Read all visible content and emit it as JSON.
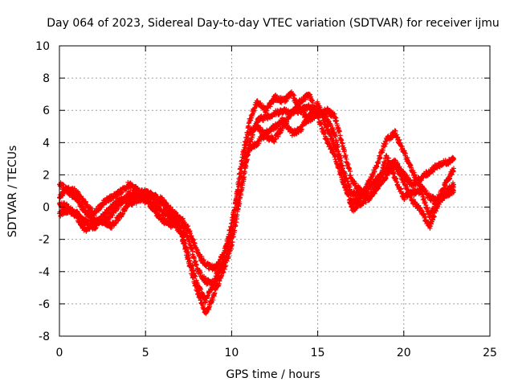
{
  "chart_data": {
    "type": "scatter",
    "title": "Day 064 of 2023, Sidereal Day-to-day VTEC variation (SDTVAR) for receiver ijmu",
    "xlabel": "GPS time / hours",
    "ylabel": "SDTVAR / TECUs",
    "xlim": [
      0,
      25
    ],
    "ylim": [
      -8,
      10
    ],
    "xticks": [
      0,
      5,
      10,
      15,
      20,
      25
    ],
    "yticks": [
      -8,
      -6,
      -4,
      -2,
      0,
      2,
      4,
      6,
      8,
      10
    ],
    "grid": true,
    "marker": "+",
    "series": [
      {
        "color": "#ff0000",
        "x": [
          0.0,
          0.5,
          1.0,
          1.5,
          2.0,
          2.5,
          3.0,
          3.5,
          4.0,
          4.5,
          5.0,
          5.5,
          6.0,
          6.5,
          7.0,
          7.5,
          8.0,
          8.5,
          9.0,
          9.5,
          10.0,
          10.5,
          11.0,
          11.5,
          12.0,
          12.5,
          13.0,
          13.5,
          14.0,
          14.5,
          15.0,
          15.5,
          16.0,
          16.5,
          17.0,
          17.5,
          18.0,
          18.5,
          19.0,
          19.5,
          20.0,
          20.5,
          21.0,
          21.5,
          22.0,
          22.5,
          22.9
        ],
        "y": [
          1.4,
          1.0,
          0.5,
          -0.3,
          -0.8,
          -1.0,
          -0.5,
          0.2,
          0.8,
          1.0,
          0.9,
          0.7,
          0.4,
          -0.2,
          -0.8,
          -2.0,
          -3.8,
          -4.6,
          -4.8,
          -3.6,
          -1.8,
          1.0,
          3.8,
          5.4,
          5.6,
          5.8,
          6.0,
          5.9,
          6.0,
          6.2,
          6.0,
          5.5,
          4.5,
          2.2,
          0.8,
          0.8,
          1.2,
          1.8,
          2.5,
          2.8,
          2.0,
          1.4,
          1.8,
          2.2,
          2.6,
          2.8,
          3.0
        ]
      },
      {
        "color": "#ff0000",
        "x": [
          0.0,
          0.5,
          1.0,
          1.5,
          2.0,
          2.5,
          3.0,
          3.5,
          4.0,
          4.5,
          5.0,
          5.5,
          6.0,
          6.5,
          7.0,
          7.5,
          8.0,
          8.5,
          9.0,
          9.5,
          10.0,
          10.5,
          11.0,
          11.5,
          12.0,
          12.5,
          13.0,
          13.5,
          14.0,
          14.5,
          15.0,
          15.5,
          16.0,
          16.5,
          17.0,
          17.5,
          18.0,
          18.5,
          19.0,
          19.5,
          20.0,
          20.5,
          21.0,
          21.5,
          22.0,
          22.5,
          22.9
        ],
        "y": [
          -0.4,
          -0.2,
          -0.4,
          -0.9,
          -1.3,
          -0.6,
          0.0,
          0.4,
          0.4,
          0.6,
          0.4,
          0.2,
          -0.3,
          -0.8,
          -1.5,
          -3.0,
          -4.8,
          -5.8,
          -4.6,
          -3.2,
          -1.0,
          1.8,
          4.6,
          5.0,
          4.4,
          4.2,
          5.0,
          5.8,
          6.6,
          7.0,
          5.6,
          4.2,
          3.2,
          1.4,
          0.3,
          0.6,
          1.6,
          2.8,
          4.2,
          4.6,
          3.4,
          2.2,
          1.2,
          0.6,
          0.4,
          0.8,
          1.0
        ]
      },
      {
        "color": "#ff0000",
        "x": [
          0.0,
          0.5,
          1.0,
          1.5,
          2.0,
          2.5,
          3.0,
          3.5,
          4.0,
          4.5,
          5.0,
          5.5,
          6.0,
          6.5,
          7.0,
          7.5,
          8.0,
          8.5,
          9.0,
          9.5,
          10.0,
          10.5,
          11.0,
          11.5,
          12.0,
          12.5,
          13.0,
          13.5,
          14.0,
          14.5,
          15.0,
          15.5,
          16.0,
          16.5,
          17.0,
          17.5,
          18.0,
          18.5,
          19.0,
          19.5,
          20.0,
          20.5,
          21.0,
          21.5,
          22.0,
          22.5,
          22.9
        ],
        "y": [
          0.6,
          1.2,
          0.9,
          0.2,
          -0.4,
          0.2,
          0.6,
          0.9,
          1.4,
          1.1,
          0.6,
          -0.2,
          -0.8,
          -1.1,
          -0.6,
          -1.4,
          -2.8,
          -3.6,
          -3.8,
          -3.0,
          -1.4,
          2.4,
          5.2,
          6.6,
          6.0,
          6.8,
          6.6,
          7.0,
          6.0,
          5.4,
          5.8,
          6.0,
          5.6,
          3.6,
          1.6,
          1.0,
          0.6,
          1.4,
          3.2,
          1.8,
          0.6,
          0.9,
          1.0,
          -0.6,
          0.6,
          1.6,
          2.4
        ]
      },
      {
        "color": "#ff0000",
        "x": [
          0.0,
          0.5,
          1.0,
          1.5,
          2.0,
          2.5,
          3.0,
          3.5,
          4.0,
          4.5,
          5.0,
          5.5,
          6.0,
          6.5,
          7.0,
          7.5,
          8.0,
          8.5,
          9.0,
          9.5,
          10.0,
          10.5,
          11.0,
          11.5,
          12.0,
          12.5,
          13.0,
          13.5,
          14.0,
          14.5,
          15.0,
          15.5,
          16.0,
          16.5,
          17.0,
          17.5,
          18.0,
          18.5,
          19.0,
          19.5,
          20.0,
          20.5,
          21.0,
          21.5,
          22.0,
          22.5,
          22.9
        ],
        "y": [
          0.2,
          0.0,
          -0.6,
          -1.4,
          -1.0,
          -0.8,
          -1.2,
          -0.6,
          0.2,
          0.4,
          0.8,
          0.6,
          0.2,
          -0.4,
          -1.2,
          -3.4,
          -5.2,
          -6.6,
          -5.4,
          -4.0,
          -2.4,
          0.6,
          3.6,
          4.0,
          4.6,
          5.0,
          5.4,
          4.6,
          4.8,
          5.6,
          6.4,
          5.0,
          3.8,
          2.0,
          -0.2,
          0.2,
          0.6,
          1.2,
          2.0,
          2.6,
          1.6,
          0.4,
          -0.2,
          -1.2,
          0.2,
          1.0,
          1.4
        ]
      }
    ]
  }
}
